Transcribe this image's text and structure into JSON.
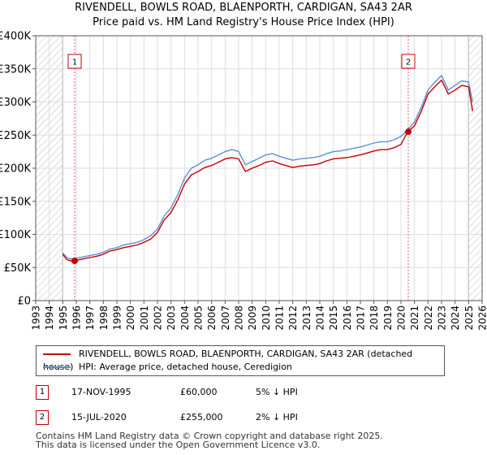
{
  "title_line1": "RIVENDELL, BOWLS ROAD, BLAENPORTH, CARDIGAN, SA43 2AR",
  "title_line2": "Price paid vs. HM Land Registry's House Price Index (HPI)",
  "colors": {
    "property": "#c00000",
    "hpi": "#5b8fd6",
    "hatch": "#bbbbbb",
    "grid": "#dddddd",
    "vline": "#e06060"
  },
  "chart_data": {
    "type": "line",
    "xlim": [
      1993,
      2026
    ],
    "ylim": [
      0,
      400000
    ],
    "x_ticks": [
      "1993",
      "1994",
      "1995",
      "1996",
      "1997",
      "1998",
      "1999",
      "2000",
      "2001",
      "2002",
      "2003",
      "2004",
      "2005",
      "2006",
      "2007",
      "2008",
      "2009",
      "2010",
      "2011",
      "2012",
      "2013",
      "2014",
      "2015",
      "2016",
      "2017",
      "2018",
      "2019",
      "2020",
      "2021",
      "2022",
      "2023",
      "2024",
      "2025",
      "2026"
    ],
    "y_ticks": [
      {
        "value": 0,
        "label": "£0"
      },
      {
        "value": 50000,
        "label": "£50K"
      },
      {
        "value": 100000,
        "label": "£100K"
      },
      {
        "value": 150000,
        "label": "£150K"
      },
      {
        "value": 200000,
        "label": "£200K"
      },
      {
        "value": 250000,
        "label": "£250K"
      },
      {
        "value": 300000,
        "label": "£300K"
      },
      {
        "value": 350000,
        "label": "£350K"
      },
      {
        "value": 400000,
        "label": "£400K"
      }
    ],
    "hatched_ranges": [
      [
        1993,
        1995.0
      ],
      [
        2025.0,
        2026
      ]
    ],
    "series": [
      {
        "name": "HPI: Average price, detached house, Ceredigion",
        "x": [
          1995.0,
          1995.3,
          1995.6,
          1996.0,
          1996.5,
          1997.0,
          1997.5,
          1998.0,
          1998.5,
          1999.0,
          1999.5,
          2000.0,
          2000.5,
          2001.0,
          2001.5,
          2002.0,
          2002.5,
          2003.0,
          2003.5,
          2004.0,
          2004.5,
          2005.0,
          2005.5,
          2006.0,
          2006.5,
          2007.0,
          2007.5,
          2008.0,
          2008.5,
          2009.0,
          2009.5,
          2010.0,
          2010.5,
          2011.0,
          2011.5,
          2012.0,
          2012.5,
          2013.0,
          2013.5,
          2014.0,
          2014.5,
          2015.0,
          2015.5,
          2016.0,
          2016.5,
          2017.0,
          2017.5,
          2018.0,
          2018.5,
          2019.0,
          2019.5,
          2020.0,
          2020.5,
          2021.0,
          2021.5,
          2022.0,
          2022.5,
          2023.0,
          2023.5,
          2024.0,
          2024.5,
          2025.0,
          2025.3
        ],
        "values": [
          72000,
          65000,
          63000,
          64000,
          66000,
          68000,
          70000,
          73000,
          78000,
          80000,
          84000,
          86000,
          88000,
          92000,
          98000,
          108000,
          128000,
          140000,
          160000,
          185000,
          200000,
          205000,
          212000,
          215000,
          220000,
          225000,
          228000,
          225000,
          205000,
          210000,
          215000,
          220000,
          222000,
          218000,
          215000,
          212000,
          214000,
          215000,
          216000,
          218000,
          222000,
          225000,
          226000,
          228000,
          230000,
          232000,
          235000,
          238000,
          240000,
          240000,
          243000,
          248000,
          258000,
          270000,
          292000,
          318000,
          330000,
          340000,
          318000,
          325000,
          332000,
          330000,
          300000
        ]
      },
      {
        "name": "RIVENDELL, BOWLS ROAD, BLAENPORTH, CARDIGAN, SA43 2AR (detached house)",
        "x": [
          1995.0,
          1995.3,
          1995.6,
          1996.0,
          1996.5,
          1997.0,
          1997.5,
          1998.0,
          1998.5,
          1999.0,
          1999.5,
          2000.0,
          2000.5,
          2001.0,
          2001.5,
          2002.0,
          2002.5,
          2003.0,
          2003.5,
          2004.0,
          2004.5,
          2005.0,
          2005.5,
          2006.0,
          2006.5,
          2007.0,
          2007.5,
          2008.0,
          2008.5,
          2009.0,
          2009.5,
          2010.0,
          2010.5,
          2011.0,
          2011.5,
          2012.0,
          2012.5,
          2013.0,
          2013.5,
          2014.0,
          2014.5,
          2015.0,
          2015.5,
          2016.0,
          2016.5,
          2017.0,
          2017.5,
          2018.0,
          2018.5,
          2019.0,
          2019.5,
          2020.0,
          2020.5,
          2021.0,
          2021.5,
          2022.0,
          2022.5,
          2023.0,
          2023.5,
          2024.0,
          2024.5,
          2025.0,
          2025.3
        ],
        "values": [
          70000,
          62000,
          60000,
          61000,
          63000,
          65000,
          67000,
          70000,
          75000,
          77000,
          80000,
          82000,
          84000,
          88000,
          93000,
          103000,
          122000,
          133000,
          152000,
          176000,
          190000,
          195000,
          201000,
          204000,
          209000,
          214000,
          216000,
          214000,
          195000,
          200000,
          204000,
          209000,
          211000,
          207000,
          204000,
          201000,
          203000,
          204000,
          205000,
          207000,
          211000,
          214000,
          215000,
          216000,
          218000,
          220000,
          223000,
          226000,
          228000,
          228000,
          231000,
          236000,
          255000,
          264000,
          286000,
          312000,
          323000,
          333000,
          312000,
          318000,
          325000,
          323000,
          286000
        ]
      }
    ],
    "sales": [
      {
        "label": "1",
        "x": 1995.88,
        "value": 60000
      },
      {
        "label": "2",
        "x": 2020.54,
        "value": 255000
      }
    ]
  },
  "legend": {
    "property_label": "RIVENDELL, BOWLS ROAD, BLAENPORTH, CARDIGAN, SA43 2AR (detached house)",
    "hpi_label": "HPI: Average price, detached house, Ceredigion"
  },
  "transactions": [
    {
      "num": "1",
      "date": "17-NOV-1995",
      "price": "£60,000",
      "hpi": "5% ↓ HPI"
    },
    {
      "num": "2",
      "date": "15-JUL-2020",
      "price": "£255,000",
      "hpi": "2% ↓ HPI"
    }
  ],
  "footer_line1": "Contains HM Land Registry data © Crown copyright and database right 2025.",
  "footer_line2": "This data is licensed under the Open Government Licence v3.0."
}
